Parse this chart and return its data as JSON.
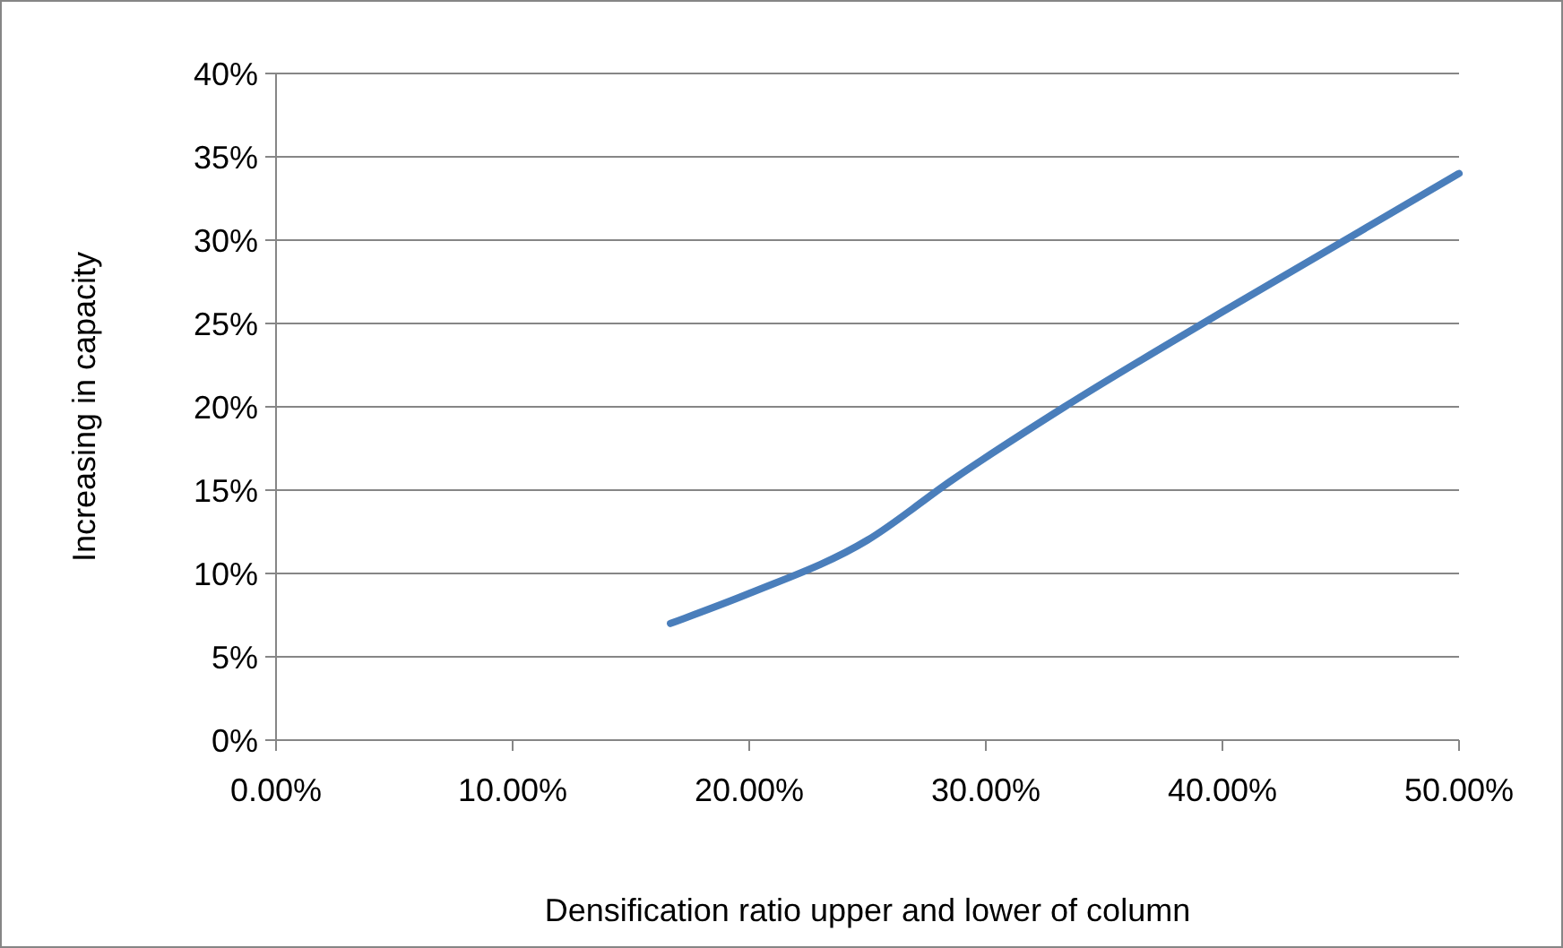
{
  "chart_data": {
    "type": "line",
    "xlabel": "Densification ratio upper and lower of column",
    "ylabel": "Increasing in capacity",
    "series": [
      {
        "color": "#4a7ebb",
        "x": [
          16.67,
          20,
          25,
          28.57,
          33.33,
          40,
          50
        ],
        "values": [
          7,
          8.8,
          12,
          15.6,
          20,
          25.7,
          34
        ]
      }
    ],
    "xlim": [
      0,
      50
    ],
    "xticks": [
      {
        "value": 0,
        "label": "0.00%"
      },
      {
        "value": 10,
        "label": "10.00%"
      },
      {
        "value": 20,
        "label": "20.00%"
      },
      {
        "value": 30,
        "label": "30.00%"
      },
      {
        "value": 40,
        "label": "40.00%"
      },
      {
        "value": 50,
        "label": "50.00%"
      }
    ],
    "ylim": [
      0,
      40
    ],
    "yticks": [
      {
        "value": 0,
        "label": "0%"
      },
      {
        "value": 5,
        "label": "5%"
      },
      {
        "value": 10,
        "label": "10%"
      },
      {
        "value": 15,
        "label": "15%"
      },
      {
        "value": 20,
        "label": "20%"
      },
      {
        "value": 25,
        "label": "25%"
      },
      {
        "value": 30,
        "label": "30%"
      },
      {
        "value": 35,
        "label": "35%"
      },
      {
        "value": 40,
        "label": "40%"
      }
    ],
    "grid": "y",
    "marker": "none",
    "line_style": "solid"
  }
}
